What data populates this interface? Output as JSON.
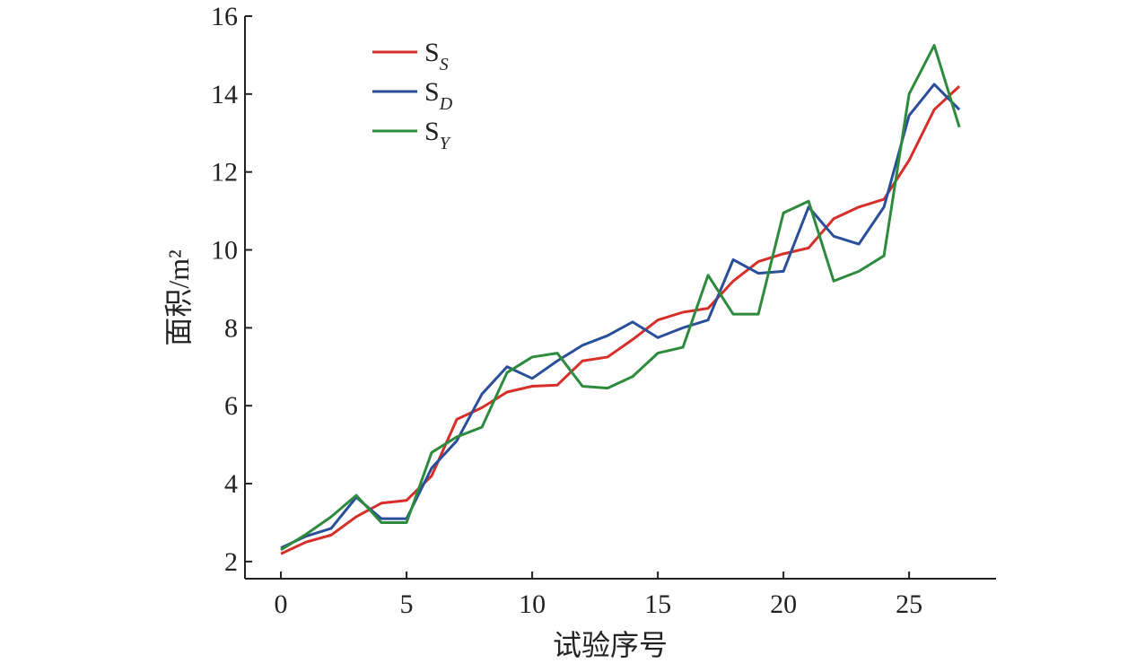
{
  "chart_data": {
    "type": "line",
    "x_label": "试验序号",
    "y_label": "面积/m²",
    "x": [
      0,
      1,
      2,
      3,
      4,
      5,
      6,
      7,
      8,
      9,
      10,
      11,
      12,
      13,
      14,
      15,
      16,
      17,
      18,
      19,
      20,
      21,
      22,
      23,
      24,
      25,
      26,
      27
    ],
    "series": [
      {
        "name": "S",
        "subscript": "S",
        "color": "#d62f2a",
        "values": [
          2.2,
          2.5,
          2.68,
          3.15,
          3.5,
          3.57,
          4.2,
          5.65,
          5.95,
          6.35,
          6.5,
          6.53,
          7.15,
          7.25,
          7.7,
          8.2,
          8.4,
          8.5,
          9.2,
          9.7,
          9.9,
          10.05,
          10.8,
          11.1,
          11.3,
          12.3,
          13.6,
          14.2
        ]
      },
      {
        "name": "S",
        "subscript": "D",
        "color": "#2a4f9a",
        "values": [
          2.35,
          2.65,
          2.85,
          3.65,
          3.1,
          3.1,
          4.4,
          5.1,
          6.3,
          7.0,
          6.7,
          7.15,
          7.55,
          7.8,
          8.15,
          7.75,
          8.0,
          8.2,
          9.75,
          9.4,
          9.45,
          11.1,
          10.35,
          10.15,
          11.1,
          13.45,
          14.25,
          13.6
        ]
      },
      {
        "name": "S",
        "subscript": "Y",
        "color": "#2e8b3e",
        "values": [
          2.3,
          2.7,
          3.15,
          3.7,
          3.0,
          3.0,
          4.8,
          5.2,
          5.45,
          6.85,
          7.25,
          7.35,
          6.5,
          6.45,
          6.75,
          7.35,
          7.5,
          9.35,
          8.35,
          8.35,
          10.95,
          11.25,
          9.2,
          9.45,
          9.85,
          14.0,
          15.25,
          13.15
        ]
      }
    ],
    "xlim": [
      -1.43,
      28.46
    ],
    "xticks": [
      0,
      5,
      10,
      15,
      20,
      25
    ],
    "ylim": [
      1.56,
      16
    ],
    "yticks": [
      2,
      4,
      6,
      8,
      10,
      12,
      14,
      16
    ],
    "grid": false,
    "legend": "upper left"
  }
}
